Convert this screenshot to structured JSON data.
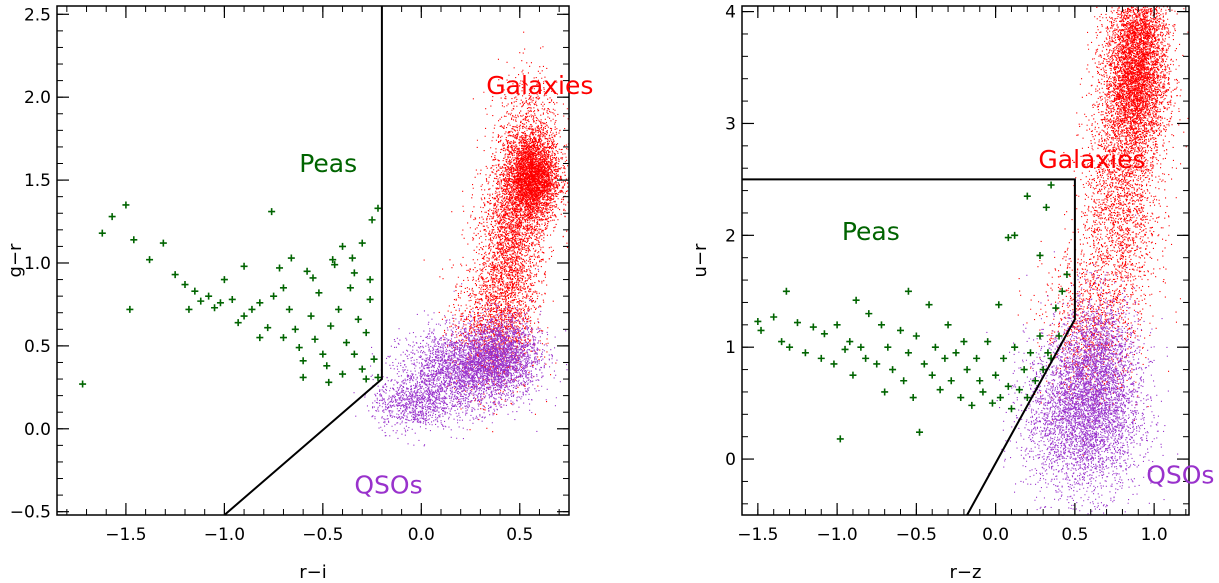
{
  "colors": {
    "galaxies": "#ff0000",
    "peas": "#006400",
    "qsos": "#9932cc",
    "boundary": "#000000"
  },
  "chart_data": [
    {
      "type": "scatter",
      "xlabel": "r−i",
      "ylabel": "g−r",
      "xlim": [
        -1.85,
        0.75
      ],
      "ylim": [
        -0.52,
        2.55
      ],
      "xticks": [
        -1.5,
        -1.0,
        -0.5,
        0.0,
        0.5
      ],
      "xtick_labels": [
        "−1.5",
        "−1.0",
        "−0.5",
        "0.0",
        "0.5"
      ],
      "yticks": [
        -0.5,
        0.0,
        0.5,
        1.0,
        1.5,
        2.0,
        2.5
      ],
      "ytick_labels": [
        "−0.5",
        "0.0",
        "0.5",
        "1.0",
        "1.5",
        "2.0",
        "2.5"
      ],
      "annotations": [
        {
          "text": "Galaxies",
          "x": 0.33,
          "y": 2.02,
          "color": "galaxies"
        },
        {
          "text": "Peas",
          "x": -0.62,
          "y": 1.55,
          "color": "peas"
        },
        {
          "text": "QSOs",
          "x": -0.34,
          "y": -0.39,
          "color": "qsos"
        }
      ],
      "boundary": {
        "x": [
          -0.2,
          -0.2,
          -1.0
        ],
        "y": [
          2.55,
          0.3,
          -0.52
        ]
      },
      "series": [
        {
          "color": "galaxies",
          "marker": "dot",
          "clusters": [
            {
              "cx": 0.56,
              "cy": 1.52,
              "sx": 0.07,
              "sy": 0.14,
              "n": 4000
            },
            {
              "cx": 0.45,
              "cy": 1.1,
              "sx": 0.08,
              "sy": 0.28,
              "n": 2500
            },
            {
              "cx": 0.35,
              "cy": 0.6,
              "sx": 0.1,
              "sy": 0.2,
              "n": 1200
            },
            {
              "cx": 0.55,
              "cy": 1.9,
              "sx": 0.08,
              "sy": 0.15,
              "n": 400
            }
          ]
        },
        {
          "color": "qsos",
          "marker": "dot",
          "clusters": [
            {
              "cx": 0.2,
              "cy": 0.35,
              "sx": 0.15,
              "sy": 0.12,
              "n": 2500
            },
            {
              "cx": 0.4,
              "cy": 0.45,
              "sx": 0.1,
              "sy": 0.12,
              "n": 2000
            },
            {
              "cx": -0.05,
              "cy": 0.15,
              "sx": 0.1,
              "sy": 0.08,
              "n": 800
            }
          ]
        },
        {
          "color": "peas",
          "marker": "plus",
          "points": [
            [
              -1.72,
              0.27
            ],
            [
              -1.62,
              1.18
            ],
            [
              -1.57,
              1.28
            ],
            [
              -1.5,
              1.35
            ],
            [
              -1.46,
              1.14
            ],
            [
              -1.38,
              1.02
            ],
            [
              -1.48,
              0.72
            ],
            [
              -1.31,
              1.12
            ],
            [
              -1.25,
              0.93
            ],
            [
              -1.2,
              0.87
            ],
            [
              -1.15,
              0.83
            ],
            [
              -1.12,
              0.77
            ],
            [
              -1.08,
              0.8
            ],
            [
              -1.05,
              0.73
            ],
            [
              -1.0,
              0.9
            ],
            [
              -0.96,
              0.78
            ],
            [
              -0.93,
              0.64
            ],
            [
              -0.9,
              0.98
            ],
            [
              -0.86,
              0.72
            ],
            [
              -0.82,
              0.55
            ],
            [
              -0.78,
              0.61
            ],
            [
              -0.75,
              0.8
            ],
            [
              -0.72,
              0.97
            ],
            [
              -0.7,
              0.85
            ],
            [
              -0.67,
              0.72
            ],
            [
              -0.64,
              0.6
            ],
            [
              -0.62,
              0.49
            ],
            [
              -0.6,
              0.41
            ],
            [
              -0.58,
              0.95
            ],
            [
              -0.56,
              0.68
            ],
            [
              -0.54,
              0.54
            ],
            [
              -0.52,
              0.82
            ],
            [
              -0.5,
              0.45
            ],
            [
              -0.48,
              0.38
            ],
            [
              -0.46,
              0.62
            ],
            [
              -0.44,
              0.99
            ],
            [
              -0.42,
              0.72
            ],
            [
              -0.4,
              0.33
            ],
            [
              -0.38,
              0.52
            ],
            [
              -0.36,
              0.85
            ],
            [
              -0.34,
              0.45
            ],
            [
              -0.32,
              0.66
            ],
            [
              -0.3,
              0.36
            ],
            [
              -0.28,
              0.58
            ],
            [
              -0.26,
              0.78
            ],
            [
              -0.24,
              0.42
            ],
            [
              -0.22,
              0.31
            ],
            [
              -0.35,
              1.03
            ],
            [
              -0.3,
              1.12
            ],
            [
              -0.25,
              1.26
            ],
            [
              -0.22,
              1.33
            ],
            [
              -0.45,
              1.02
            ],
            [
              -0.4,
              1.1
            ],
            [
              -0.55,
              0.91
            ],
            [
              -0.76,
              1.31
            ],
            [
              -0.66,
              1.03
            ],
            [
              -0.47,
              0.28
            ],
            [
              -0.6,
              0.31
            ],
            [
              -0.7,
              0.55
            ],
            [
              -0.82,
              0.76
            ],
            [
              -1.02,
              0.76
            ],
            [
              -0.9,
              0.68
            ],
            [
              -1.18,
              0.72
            ],
            [
              -0.26,
              0.9
            ],
            [
              -0.34,
              0.94
            ],
            [
              -0.28,
              0.3
            ]
          ]
        }
      ]
    },
    {
      "type": "scatter",
      "xlabel": "r−z",
      "ylabel": "u−r",
      "xlim": [
        -1.6,
        1.22
      ],
      "ylim": [
        -0.5,
        4.05
      ],
      "xticks": [
        -1.5,
        -1.0,
        -0.5,
        0.0,
        0.5,
        1.0
      ],
      "xtick_labels": [
        "−1.5",
        "−1.0",
        "−0.5",
        "0.0",
        "0.5",
        "1.0"
      ],
      "yticks": [
        0,
        1,
        2,
        3,
        4
      ],
      "ytick_labels": [
        "0",
        "1",
        "2",
        "3",
        "4"
      ],
      "annotations": [
        {
          "text": "Galaxies",
          "x": 0.27,
          "y": 2.6,
          "color": "galaxies"
        },
        {
          "text": "Peas",
          "x": -0.97,
          "y": 1.96,
          "color": "peas"
        },
        {
          "text": "QSOs",
          "x": 0.95,
          "y": -0.22,
          "color": "qsos"
        }
      ],
      "boundary": {
        "x": [
          -1.6,
          0.5,
          0.5,
          -0.18
        ],
        "y": [
          2.5,
          2.5,
          1.25,
          -0.5
        ]
      },
      "series": [
        {
          "color": "galaxies",
          "marker": "dot",
          "clusters": [
            {
              "cx": 0.88,
              "cy": 3.4,
              "sx": 0.1,
              "sy": 0.35,
              "n": 4500
            },
            {
              "cx": 0.78,
              "cy": 2.3,
              "sx": 0.12,
              "sy": 0.5,
              "n": 2000
            },
            {
              "cx": 0.6,
              "cy": 1.2,
              "sx": 0.15,
              "sy": 0.35,
              "n": 1000
            },
            {
              "cx": 0.92,
              "cy": 3.85,
              "sx": 0.08,
              "sy": 0.15,
              "n": 600
            }
          ]
        },
        {
          "color": "qsos",
          "marker": "dot",
          "clusters": [
            {
              "cx": 0.55,
              "cy": 0.4,
              "sx": 0.18,
              "sy": 0.35,
              "n": 4000
            },
            {
              "cx": 0.65,
              "cy": 0.9,
              "sx": 0.12,
              "sy": 0.3,
              "n": 1500
            }
          ]
        },
        {
          "color": "peas",
          "marker": "plus",
          "points": [
            [
              -1.5,
              1.23
            ],
            [
              -1.48,
              1.15
            ],
            [
              -1.4,
              1.27
            ],
            [
              -1.35,
              1.05
            ],
            [
              -1.32,
              1.5
            ],
            [
              -1.3,
              1.0
            ],
            [
              -1.25,
              1.22
            ],
            [
              -1.2,
              0.95
            ],
            [
              -1.15,
              1.18
            ],
            [
              -1.1,
              0.9
            ],
            [
              -1.08,
              1.12
            ],
            [
              -1.02,
              0.85
            ],
            [
              -1.0,
              1.2
            ],
            [
              -0.98,
              0.18
            ],
            [
              -0.95,
              0.98
            ],
            [
              -0.92,
              1.05
            ],
            [
              -0.9,
              0.75
            ],
            [
              -0.88,
              1.42
            ],
            [
              -0.85,
              1.0
            ],
            [
              -0.82,
              0.9
            ],
            [
              -0.8,
              1.3
            ],
            [
              -0.75,
              0.85
            ],
            [
              -0.72,
              1.2
            ],
            [
              -0.7,
              0.6
            ],
            [
              -0.68,
              1.0
            ],
            [
              -0.65,
              0.8
            ],
            [
              -0.6,
              1.15
            ],
            [
              -0.58,
              0.7
            ],
            [
              -0.55,
              0.95
            ],
            [
              -0.52,
              0.55
            ],
            [
              -0.5,
              1.1
            ],
            [
              -0.48,
              0.24
            ],
            [
              -0.45,
              0.85
            ],
            [
              -0.42,
              1.38
            ],
            [
              -0.4,
              0.75
            ],
            [
              -0.38,
              1.0
            ],
            [
              -0.35,
              0.62
            ],
            [
              -0.32,
              0.9
            ],
            [
              -0.3,
              1.2
            ],
            [
              -0.28,
              0.7
            ],
            [
              -0.25,
              0.95
            ],
            [
              -0.22,
              0.55
            ],
            [
              -0.2,
              1.05
            ],
            [
              -0.18,
              0.8
            ],
            [
              -0.15,
              0.48
            ],
            [
              -0.12,
              0.9
            ],
            [
              -0.1,
              0.7
            ],
            [
              -0.08,
              0.6
            ],
            [
              -0.05,
              1.05
            ],
            [
              -0.02,
              0.5
            ],
            [
              0.0,
              0.75
            ],
            [
              0.03,
              0.55
            ],
            [
              0.05,
              0.9
            ],
            [
              0.08,
              0.65
            ],
            [
              0.1,
              0.45
            ],
            [
              0.12,
              1.0
            ],
            [
              0.15,
              0.62
            ],
            [
              0.18,
              0.8
            ],
            [
              0.2,
              0.55
            ],
            [
              0.22,
              0.95
            ],
            [
              0.25,
              0.7
            ],
            [
              0.28,
              1.1
            ],
            [
              0.3,
              0.8
            ],
            [
              0.33,
              0.95
            ],
            [
              0.35,
              0.9
            ],
            [
              0.38,
              1.35
            ],
            [
              0.42,
              1.5
            ],
            [
              0.45,
              1.65
            ],
            [
              0.32,
              2.25
            ],
            [
              0.2,
              2.35
            ],
            [
              0.35,
              2.45
            ],
            [
              0.08,
              1.98
            ],
            [
              0.12,
              2.0
            ],
            [
              0.28,
              1.82
            ],
            [
              0.02,
              1.38
            ],
            [
              0.4,
              1.1
            ],
            [
              -0.55,
              1.5
            ]
          ]
        }
      ]
    }
  ]
}
